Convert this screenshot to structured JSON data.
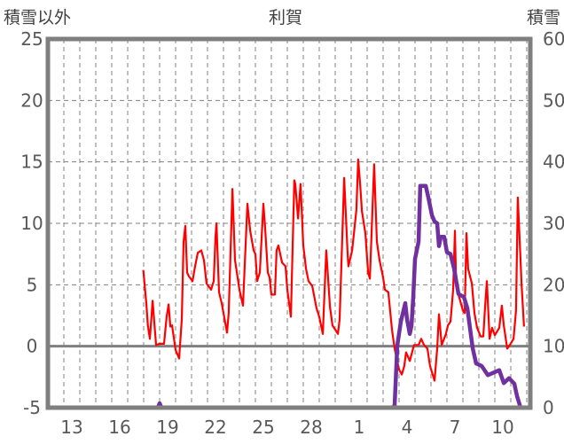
{
  "chart_data": {
    "type": "line",
    "title": "利賀",
    "ylabel_left": "積雪以外",
    "ylabel_right": "積雪",
    "ylim_left": [
      -5,
      25
    ],
    "ylim_right": [
      0,
      60
    ],
    "yticks_left": [
      -5,
      0,
      5,
      10,
      15,
      20,
      25
    ],
    "yticks_right": [
      0,
      10,
      20,
      30,
      40,
      50,
      60
    ],
    "xlim_days": [
      0,
      30.22
    ],
    "x_unit": "days since 12th (day index)",
    "xticks": [
      {
        "label": "13",
        "day": 1
      },
      {
        "label": "16",
        "day": 4
      },
      {
        "label": "19",
        "day": 7
      },
      {
        "label": "22",
        "day": 10
      },
      {
        "label": "25",
        "day": 13
      },
      {
        "label": "28",
        "day": 16
      },
      {
        "label": "1",
        "day": 19
      },
      {
        "label": "4",
        "day": 22
      },
      {
        "label": "7",
        "day": 25
      },
      {
        "label": "10",
        "day": 28
      }
    ],
    "grid": {
      "vertical_daily_dashed": true,
      "horizontal_dashed": true
    },
    "colors": {
      "temperature": "#ff0000",
      "snow": "#7030a0",
      "frame": "#7f7f7f",
      "grid": "#808080"
    },
    "series": [
      {
        "name": "積雪以外",
        "axis": "left",
        "points": [
          [
            5.98,
            6.2
          ],
          [
            6.17,
            3.4
          ],
          [
            6.26,
            1.7
          ],
          [
            6.39,
            0.6
          ],
          [
            6.56,
            3.7
          ],
          [
            6.78,
            0.1
          ],
          [
            7.0,
            0.2
          ],
          [
            7.28,
            0.2
          ],
          [
            7.44,
            2.4
          ],
          [
            7.56,
            3.4
          ],
          [
            7.67,
            1.6
          ],
          [
            7.78,
            1.7
          ],
          [
            8.0,
            -0.3
          ],
          [
            8.22,
            -1.0
          ],
          [
            8.39,
            2.2
          ],
          [
            8.5,
            8.5
          ],
          [
            8.61,
            9.8
          ],
          [
            8.72,
            6.0
          ],
          [
            8.83,
            5.7
          ],
          [
            9.06,
            5.3
          ],
          [
            9.22,
            6.5
          ],
          [
            9.39,
            7.6
          ],
          [
            9.61,
            7.8
          ],
          [
            9.78,
            7.0
          ],
          [
            9.94,
            5.1
          ],
          [
            10.22,
            4.6
          ],
          [
            10.39,
            5.3
          ],
          [
            10.5,
            8.9
          ],
          [
            10.56,
            10.0
          ],
          [
            10.72,
            4.4
          ],
          [
            10.89,
            3.5
          ],
          [
            11.22,
            1.1
          ],
          [
            11.33,
            2.7
          ],
          [
            11.56,
            12.8
          ],
          [
            11.72,
            7.0
          ],
          [
            12.0,
            4.6
          ],
          [
            12.22,
            3.3
          ],
          [
            12.5,
            11.6
          ],
          [
            12.67,
            9.4
          ],
          [
            12.89,
            7.8
          ],
          [
            13.0,
            7.5
          ],
          [
            13.11,
            5.3
          ],
          [
            13.28,
            6.0
          ],
          [
            13.5,
            11.6
          ],
          [
            13.61,
            9.6
          ],
          [
            13.78,
            6.0
          ],
          [
            13.89,
            5.6
          ],
          [
            14.0,
            4.2
          ],
          [
            14.22,
            4.2
          ],
          [
            14.33,
            7.8
          ],
          [
            14.44,
            8.2
          ],
          [
            14.67,
            6.8
          ],
          [
            14.89,
            6.5
          ],
          [
            15.0,
            4.6
          ],
          [
            15.22,
            2.4
          ],
          [
            15.44,
            13.5
          ],
          [
            15.5,
            13.2
          ],
          [
            15.67,
            10.4
          ],
          [
            15.83,
            13.2
          ],
          [
            16.0,
            8.2
          ],
          [
            16.17,
            6.3
          ],
          [
            16.33,
            5.3
          ],
          [
            16.56,
            4.9
          ],
          [
            16.83,
            3.1
          ],
          [
            17.0,
            2.4
          ],
          [
            17.22,
            1.0
          ],
          [
            17.44,
            7.8
          ],
          [
            17.67,
            3.2
          ],
          [
            17.83,
            1.7
          ],
          [
            18.17,
            1.0
          ],
          [
            18.28,
            2.2
          ],
          [
            18.56,
            13.7
          ],
          [
            18.78,
            7.5
          ],
          [
            18.83,
            6.5
          ],
          [
            19.06,
            7.8
          ],
          [
            19.33,
            11.1
          ],
          [
            19.44,
            15.2
          ],
          [
            19.56,
            13.2
          ],
          [
            19.67,
            11.0
          ],
          [
            19.89,
            9.2
          ],
          [
            20.06,
            6.0
          ],
          [
            20.17,
            5.5
          ],
          [
            20.44,
            14.8
          ],
          [
            20.61,
            8.5
          ],
          [
            20.78,
            7.0
          ],
          [
            21.0,
            5.6
          ],
          [
            21.11,
            4.6
          ],
          [
            21.33,
            4.4
          ],
          [
            21.56,
            1.3
          ],
          [
            21.72,
            -0.2
          ],
          [
            22.0,
            -1.9
          ],
          [
            22.17,
            -2.3
          ],
          [
            22.33,
            -1.6
          ],
          [
            22.44,
            -0.5
          ],
          [
            22.67,
            -1.2
          ],
          [
            22.94,
            0.1
          ],
          [
            23.22,
            0.1
          ],
          [
            23.39,
            0.6
          ],
          [
            23.56,
            0.1
          ],
          [
            23.78,
            -0.2
          ],
          [
            23.94,
            -1.6
          ],
          [
            24.22,
            -2.8
          ],
          [
            24.39,
            -0.2
          ],
          [
            24.5,
            2.6
          ],
          [
            24.67,
            0.1
          ],
          [
            24.94,
            1.0
          ],
          [
            25.06,
            1.7
          ],
          [
            25.22,
            2.0
          ],
          [
            25.39,
            4.6
          ],
          [
            25.5,
            9.4
          ],
          [
            25.56,
            6.0
          ],
          [
            25.72,
            4.2
          ],
          [
            26.0,
            2.9
          ],
          [
            26.11,
            2.7
          ],
          [
            26.22,
            9.2
          ],
          [
            26.33,
            6.3
          ],
          [
            26.56,
            5.1
          ],
          [
            26.72,
            2.7
          ],
          [
            26.89,
            1.5
          ],
          [
            27.11,
            0.8
          ],
          [
            27.28,
            0.8
          ],
          [
            27.39,
            3.2
          ],
          [
            27.5,
            5.3
          ],
          [
            27.67,
            0.6
          ],
          [
            27.83,
            1.5
          ],
          [
            28.0,
            0.9
          ],
          [
            28.28,
            1.5
          ],
          [
            28.44,
            3.3
          ],
          [
            28.56,
            1.7
          ],
          [
            28.78,
            -0.2
          ],
          [
            28.94,
            0.1
          ],
          [
            29.17,
            0.6
          ],
          [
            29.33,
            2.9
          ],
          [
            29.44,
            12.1
          ],
          [
            29.61,
            7.0
          ],
          [
            29.67,
            5.1
          ],
          [
            29.83,
            1.6
          ]
        ]
      },
      {
        "name": "積雪",
        "axis": "right",
        "points": [
          [
            6.0,
            0
          ],
          [
            6.89,
            0
          ],
          [
            7.0,
            0.7
          ],
          [
            7.11,
            0
          ],
          [
            21.61,
            0
          ],
          [
            21.72,
            0.4
          ],
          [
            21.89,
            10.1
          ],
          [
            22.11,
            14.0
          ],
          [
            22.39,
            17.0
          ],
          [
            22.5,
            14.4
          ],
          [
            22.67,
            12.0
          ],
          [
            22.78,
            13.3
          ],
          [
            22.89,
            18.0
          ],
          [
            23.0,
            24.2
          ],
          [
            23.22,
            27.0
          ],
          [
            23.33,
            36.1
          ],
          [
            23.67,
            36.1
          ],
          [
            23.83,
            34.3
          ],
          [
            24.06,
            31.3
          ],
          [
            24.22,
            30.3
          ],
          [
            24.39,
            30.0
          ],
          [
            24.5,
            26.3
          ],
          [
            24.61,
            27.8
          ],
          [
            24.83,
            27.8
          ],
          [
            25.0,
            25.3
          ],
          [
            25.22,
            25.0
          ],
          [
            25.44,
            22.7
          ],
          [
            25.72,
            18.5
          ],
          [
            26.06,
            18.0
          ],
          [
            26.28,
            16.2
          ],
          [
            26.61,
            9.7
          ],
          [
            26.83,
            7.2
          ],
          [
            27.17,
            6.8
          ],
          [
            27.56,
            5.3
          ],
          [
            28.28,
            6.1
          ],
          [
            28.56,
            4.0
          ],
          [
            28.89,
            4.8
          ],
          [
            29.22,
            3.9
          ],
          [
            29.39,
            1.9
          ],
          [
            29.61,
            0
          ],
          [
            30.22,
            0
          ]
        ]
      }
    ]
  }
}
